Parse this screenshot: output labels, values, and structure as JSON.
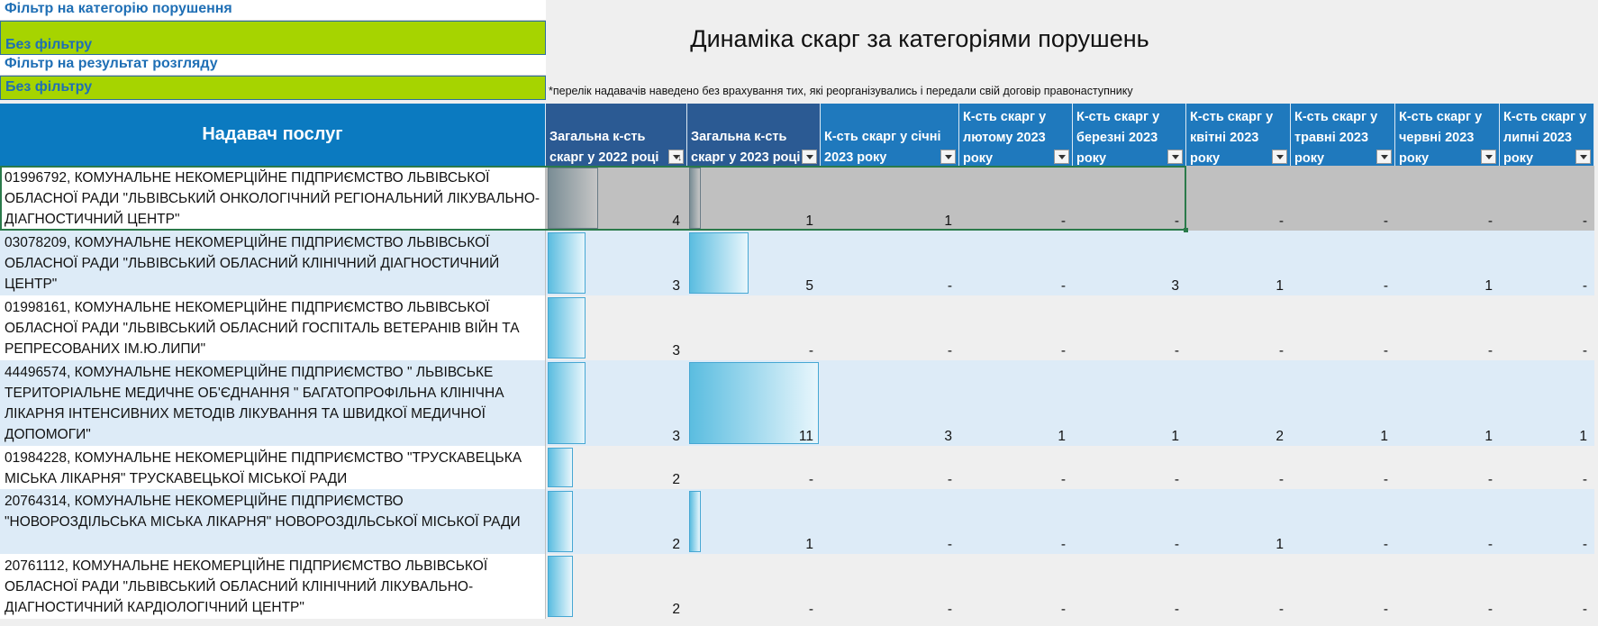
{
  "filters": {
    "category_label": "Фільтр на категорію порушення",
    "category_value": "Без фільтру",
    "result_label": "Фільтр на результат розгляду",
    "result_value": "Без фільтру"
  },
  "title": "Динаміка скарг за категоріями порушень",
  "note": "*перелік надавачів наведено без врахування тих, які реорганізувались і передали свій договір правонаступнику",
  "columns": [
    "Надавач послуг",
    "Загальна к-сть скарг у 2022 році",
    "Загальна к-сть скарг у 2023 році",
    "К-сть скарг у січні 2023 року",
    "К-сть скарг у лютому 2023 року",
    "К-сть скарг у березні 2023 року",
    "К-сть скарг у квітні 2023 року",
    "К-сть скарг у травні 2023 року",
    "К-сть скарг у червні 2023 року",
    "К-сть скарг у липні 2023 року"
  ],
  "rows": [
    {
      "name": " 01996792, КОМУНАЛЬНЕ НЕКОМЕРЦІЙНЕ ПІДПРИЄМСТВО ЛЬВІВСЬКОЇ ОБЛАСНОЇ РАДИ \"ЛЬВІВСЬКИЙ ОНКОЛОГІЧНИЙ РЕГІОНАЛЬНИЙ ЛІКУВАЛЬНО-ДІАГНОСТИЧНИЙ ЦЕНТР\"",
      "values": [
        "4",
        "1",
        "1",
        "-",
        "-",
        "-",
        "-",
        "-",
        "-"
      ],
      "bar2022": 0.364,
      "bar2023": 0.091
    },
    {
      "name": " 03078209, КОМУНАЛЬНЕ НЕКОМЕРЦІЙНЕ ПІДПРИЄМСТВО ЛЬВІВСЬКОЇ ОБЛАСНОЇ РАДИ \"ЛЬВІВСЬКИЙ ОБЛАСНИЙ КЛІНІЧНИЙ ДІАГНОСТИЧНИЙ ЦЕНТР\"",
      "values": [
        "3",
        "5",
        "-",
        "-",
        "3",
        "1",
        "-",
        "1",
        "-"
      ],
      "bar2022": 0.273,
      "bar2023": 0.455
    },
    {
      "name": " 01998161, КОМУНАЛЬНЕ НЕКОМЕРЦІЙНЕ ПІДПРИЄМСТВО ЛЬВІВСЬКОЇ ОБЛАСНОЇ РАДИ \"ЛЬВІВСЬКИЙ ОБЛАСНИЙ ГОСПІТАЛЬ ВЕТЕРАНІВ ВІЙН ТА РЕПРЕСОВАНИХ ІМ.Ю.ЛИПИ\"",
      "values": [
        "3",
        "-",
        "-",
        "-",
        "-",
        "-",
        "-",
        "-",
        "-"
      ],
      "bar2022": 0.273,
      "bar2023": 0
    },
    {
      "name": " 44496574, КОМУНАЛЬНЕ НЕКОМЕРЦІЙНЕ ПІДПРИЄМСТВО \" ЛЬВІВСЬКЕ ТЕРИТОРІАЛЬНЕ МЕДИЧНЕ ОБ'ЄДНАННЯ \" БАГАТОПРОФІЛЬНА КЛІНІЧНА ЛІКАРНЯ ІНТЕНСИВНИХ МЕТОДІВ ЛІКУВАННЯ ТА ШВИДКОЇ МЕДИЧНОЇ ДОПОМОГИ\"",
      "values": [
        "3",
        "11",
        "3",
        "1",
        "1",
        "2",
        "1",
        "1",
        "1"
      ],
      "bar2022": 0.273,
      "bar2023": 1.0
    },
    {
      "name": " 01984228, КОМУНАЛЬНЕ НЕКОМЕРЦІЙНЕ ПІДПРИЄМСТВО \"ТРУСКАВЕЦЬКА МІСЬКА ЛІКАРНЯ\" ТРУСКАВЕЦЬКОЇ МІСЬКОЇ РАДИ",
      "values": [
        "2",
        "-",
        "-",
        "-",
        "-",
        "-",
        "-",
        "-",
        "-"
      ],
      "bar2022": 0.182,
      "bar2023": 0
    },
    {
      "name": " 20764314, КОМУНАЛЬНЕ НЕКОМЕРЦІЙНЕ ПІДПРИЄМСТВО \"НОВОРОЗДІЛЬСЬКА МІСЬКА ЛІКАРНЯ\" НОВОРОЗДІЛЬСЬКОЇ МІСЬКОЇ РАДИ",
      "values": [
        "2",
        "1",
        "-",
        "-",
        "-",
        "1",
        "-",
        "-",
        "-"
      ],
      "bar2022": 0.182,
      "bar2023": 0.091
    },
    {
      "name": " 20761112, КОМУНАЛЬНЕ НЕКОМЕРЦІЙНЕ ПІДПРИЄМСТВО ЛЬВІВСЬКОЇ ОБЛАСНОЇ РАДИ \"ЛЬВІВСЬКИЙ ОБЛАСНИЙ  КЛІНІЧНИЙ ЛІКУВАЛЬНО-ДІАГНОСТИЧНИЙ КАРДІОЛОГІЧНИЙ ЦЕНТР\"",
      "values": [
        "2",
        "-",
        "-",
        "-",
        "-",
        "-",
        "-",
        "-",
        "-"
      ],
      "bar2022": 0.182,
      "bar2023": 0
    }
  ]
}
